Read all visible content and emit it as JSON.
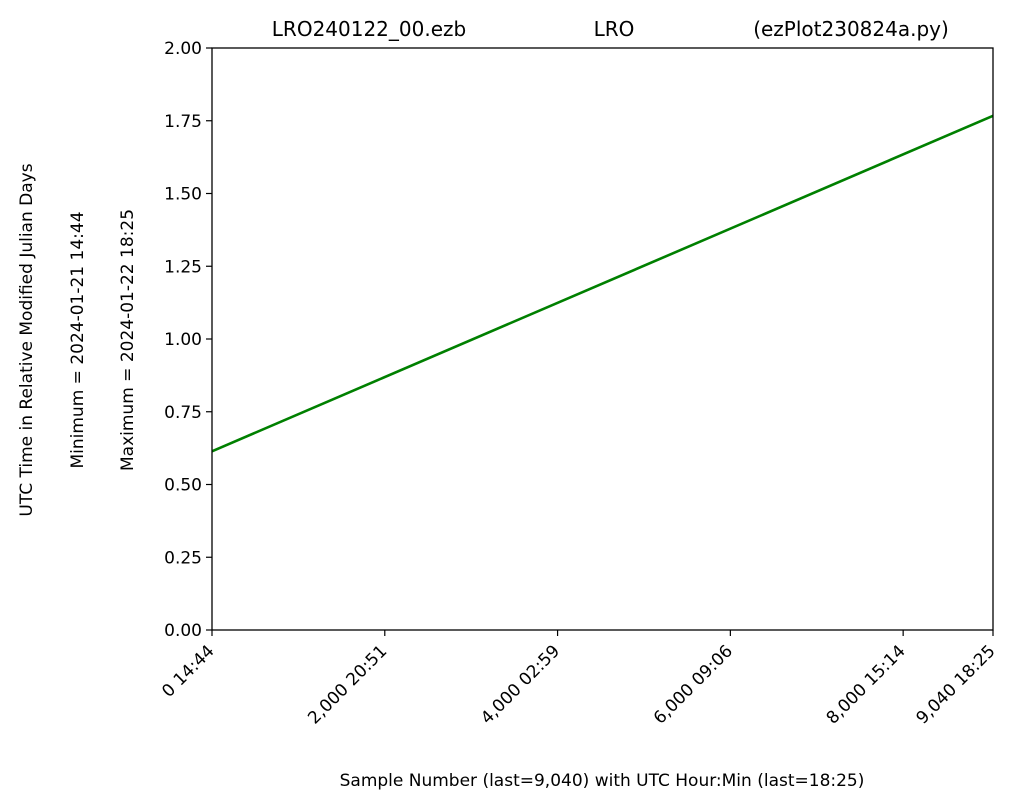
{
  "chart_data": {
    "type": "line",
    "title_parts": [
      "LRO240122_00.ezb",
      "LRO",
      "(ezPlot230824a.py)"
    ],
    "xlabel": "Sample Number (last=9,040) with UTC Hour:Min (last=18:25)",
    "ylabel_lines": [
      "UTC Time in Relative Modified Julian Days",
      "Minimum = 2024-01-21   14:44",
      "Maximum = 2024-01-22   18:25"
    ],
    "xlim": [
      0,
      9040
    ],
    "ylim": [
      0,
      2.0
    ],
    "x_ticks": [
      {
        "value": 0,
        "label": "0  14:44"
      },
      {
        "value": 2000,
        "label": "2,000  20:51"
      },
      {
        "value": 4000,
        "label": "4,000  02:59"
      },
      {
        "value": 6000,
        "label": "6,000  09:06"
      },
      {
        "value": 8000,
        "label": "8,000  15:14"
      },
      {
        "value": 9040,
        "label": "9,040  18:25"
      }
    ],
    "y_ticks": [
      "0.00",
      "0.25",
      "0.50",
      "0.75",
      "1.00",
      "1.25",
      "1.50",
      "1.75",
      "2.00"
    ],
    "grid": false,
    "series": [
      {
        "color": "#008000",
        "x": [
          0,
          9040
        ],
        "y": [
          0.614,
          1.767
        ]
      }
    ]
  }
}
